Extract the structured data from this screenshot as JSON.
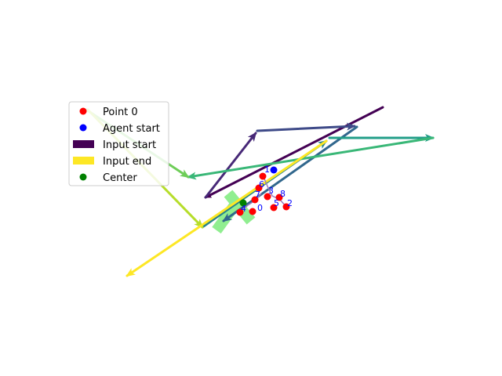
{
  "legend": {
    "items": [
      {
        "label": "Point 0",
        "kind": "marker",
        "color": "#ff0000"
      },
      {
        "label": "Agent start",
        "kind": "marker",
        "color": "#0000ff"
      },
      {
        "label": "Input start",
        "kind": "bar",
        "color": "#440154"
      },
      {
        "label": "Input end",
        "kind": "bar",
        "color": "#fde725"
      },
      {
        "label": "Center",
        "kind": "marker",
        "color": "#008000"
      }
    ]
  },
  "point_labels": [
    "0",
    "1",
    "2",
    "3",
    "4",
    "5",
    "6",
    "7",
    "8"
  ],
  "colors": {
    "point": "#ff0000",
    "agent": "#0000ff",
    "center": "#008000",
    "label": "#0000ff",
    "path_start": "#440154",
    "path_end": "#fde725",
    "highlight_box": "#90ee90"
  }
}
